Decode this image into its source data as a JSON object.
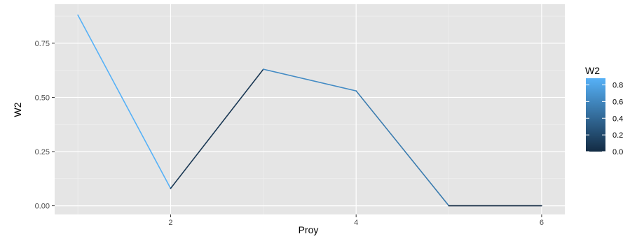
{
  "chart_data": {
    "type": "line",
    "x": [
      1,
      2,
      3,
      4,
      5,
      6
    ],
    "y": [
      0.88,
      0.08,
      0.63,
      0.53,
      0.0,
      0.0
    ],
    "xlabel": "Proy",
    "ylabel": "W2",
    "xlim": [
      0.75,
      6.25
    ],
    "ylim": [
      -0.04,
      0.93
    ],
    "x_ticks": [
      2,
      4,
      6
    ],
    "x_tick_labels": [
      "2",
      "4",
      "6"
    ],
    "y_ticks": [
      0.0,
      0.25,
      0.5,
      0.75
    ],
    "y_tick_labels": [
      "0.00",
      "0.25",
      "0.50",
      "0.75"
    ],
    "grid": true,
    "background": "#e5e5e5",
    "legend": {
      "title": "W2",
      "placement": "right",
      "type": "colorbar",
      "range": [
        0,
        0.88
      ],
      "ticks": [
        0.0,
        0.2,
        0.4,
        0.6,
        0.8
      ],
      "tick_labels": [
        "0.0",
        "0.2",
        "0.4",
        "0.6",
        "0.8"
      ],
      "color_low": "#132b43",
      "color_high": "#56b1f7"
    }
  }
}
